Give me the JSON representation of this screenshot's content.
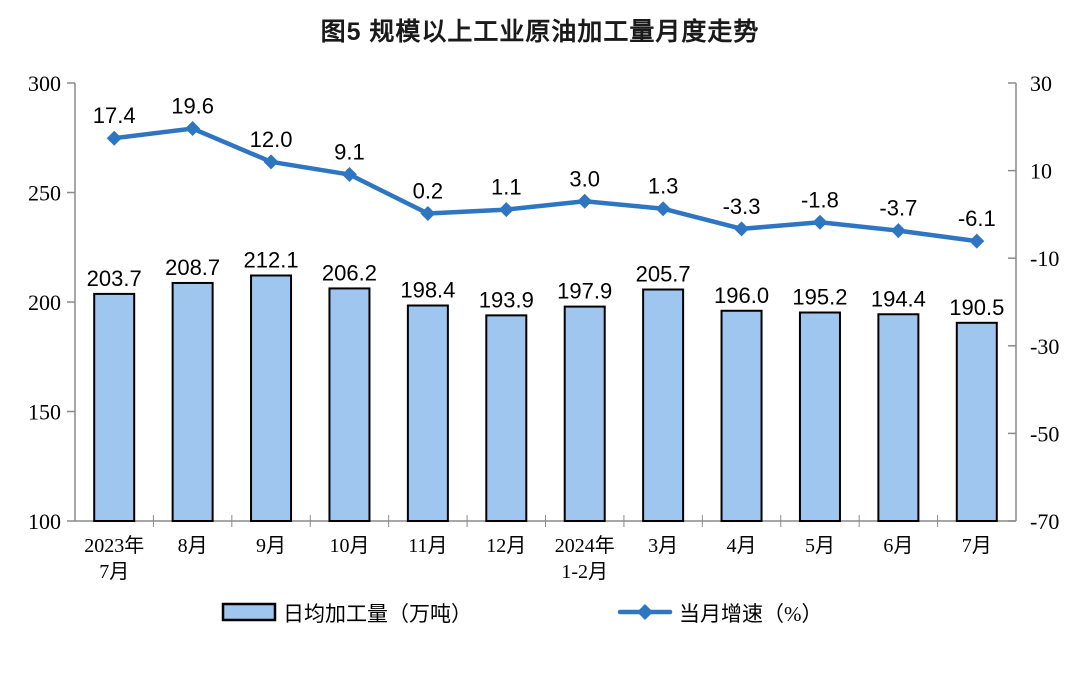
{
  "title": "图5  规模以上工业原油加工量月度走势",
  "chart_data": {
    "type": "bar",
    "combo": "bar+line",
    "title": "图5  规模以上工业原油加工量月度走势",
    "categories": [
      [
        "2023年",
        "7月"
      ],
      [
        "8月"
      ],
      [
        "9月"
      ],
      [
        "10月"
      ],
      [
        "11月"
      ],
      [
        "12月"
      ],
      [
        "2024年",
        "1-2月"
      ],
      [
        "3月"
      ],
      [
        "4月"
      ],
      [
        "5月"
      ],
      [
        "6月"
      ],
      [
        "7月"
      ]
    ],
    "series": [
      {
        "name": "日均加工量（万吨）",
        "type": "bar",
        "axis": "left",
        "values": [
          203.7,
          208.7,
          212.1,
          206.2,
          198.4,
          193.9,
          197.9,
          205.7,
          196.0,
          195.2,
          194.4,
          190.5
        ]
      },
      {
        "name": "当月增速（%）",
        "type": "line",
        "axis": "right",
        "values": [
          17.4,
          19.6,
          12.0,
          9.1,
          0.2,
          1.1,
          3.0,
          1.3,
          -3.3,
          -1.8,
          -3.7,
          -6.1
        ]
      }
    ],
    "left_axis": {
      "min": 100,
      "max": 300,
      "ticks": [
        300,
        250,
        200,
        150,
        100
      ]
    },
    "right_axis": {
      "min": -70,
      "max": 30,
      "ticks": [
        30,
        10,
        -10,
        -30,
        -50,
        -70
      ]
    },
    "grid": false,
    "legend_position": "bottom",
    "colors": {
      "bar_fill": "#9EC6EE",
      "bar_border": "#000000",
      "line": "#2E76C1",
      "axis": "#8A8A8A",
      "text": "#000000"
    }
  }
}
